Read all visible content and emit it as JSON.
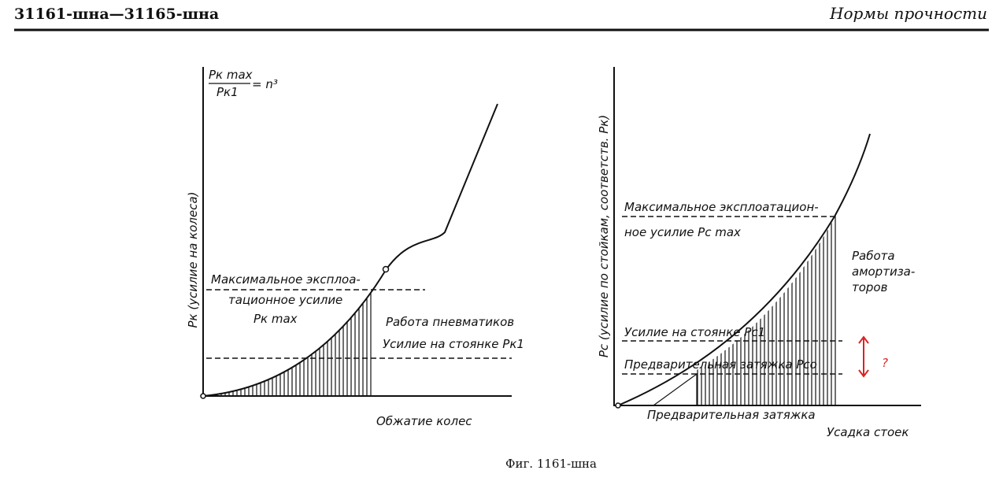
{
  "header": {
    "left": "31161-шна—31165-шна",
    "right": "Нормы прочности"
  },
  "figures": [
    {
      "formula": {
        "numerator": "Pк max",
        "denominator": "Pк1",
        "rhs": "= n³"
      },
      "y_label": "Pк (усилие на колеса)",
      "labels": [
        "Максимальное эксплоа-",
        "тационное усилие",
        "Pк max",
        "Работа пневматиков",
        "Усилие на стоянке Pк1"
      ],
      "x_label": "Обжатие колес"
    },
    {
      "y_label": "Pс (усилие по стойкам, соответств. Pк)",
      "labels": [
        "Максимальное эксплоатацион-",
        "ное усилие  Pс max",
        "Работа",
        "амортиза-",
        "торов",
        "Усилие на стоянке Pс1",
        "Предварительная затяжка Pсо",
        "Предварительная затяжка"
      ],
      "x_label": "Усадка стоек",
      "annotation": "?"
    }
  ],
  "caption": "Фиг. 1161-шна"
}
